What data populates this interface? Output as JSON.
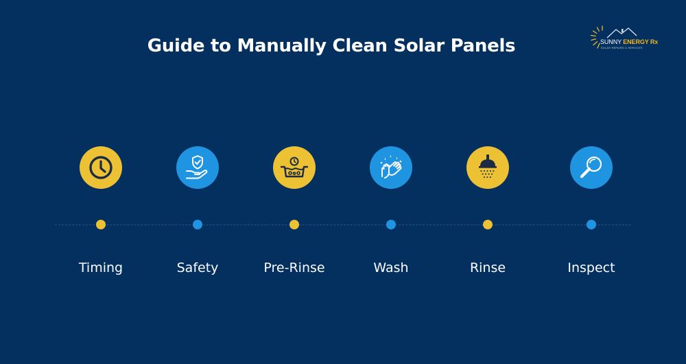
{
  "title": "Guide to Manually Clean Solar Panels",
  "brand": {
    "name_part1": "SUNNY",
    "name_part2": "ENERGY Rx",
    "tagline": "SOLAR REPAIRS & SERVICES"
  },
  "colors": {
    "background": "#03305f",
    "yellow": "#ecc133",
    "blue": "#1f95e2",
    "dark": "#1b2a45"
  },
  "steps": [
    {
      "label": "Timing",
      "icon": "clock-icon",
      "color": "yellow"
    },
    {
      "label": "Safety",
      "icon": "hand-shield-icon",
      "color": "blue"
    },
    {
      "label": "Pre-Rinse",
      "icon": "basin-icon",
      "color": "yellow"
    },
    {
      "label": "Wash",
      "icon": "hands-washing-icon",
      "color": "blue"
    },
    {
      "label": "Rinse",
      "icon": "shower-icon",
      "color": "yellow"
    },
    {
      "label": "Inspect",
      "icon": "magnifier-icon",
      "color": "blue"
    }
  ]
}
